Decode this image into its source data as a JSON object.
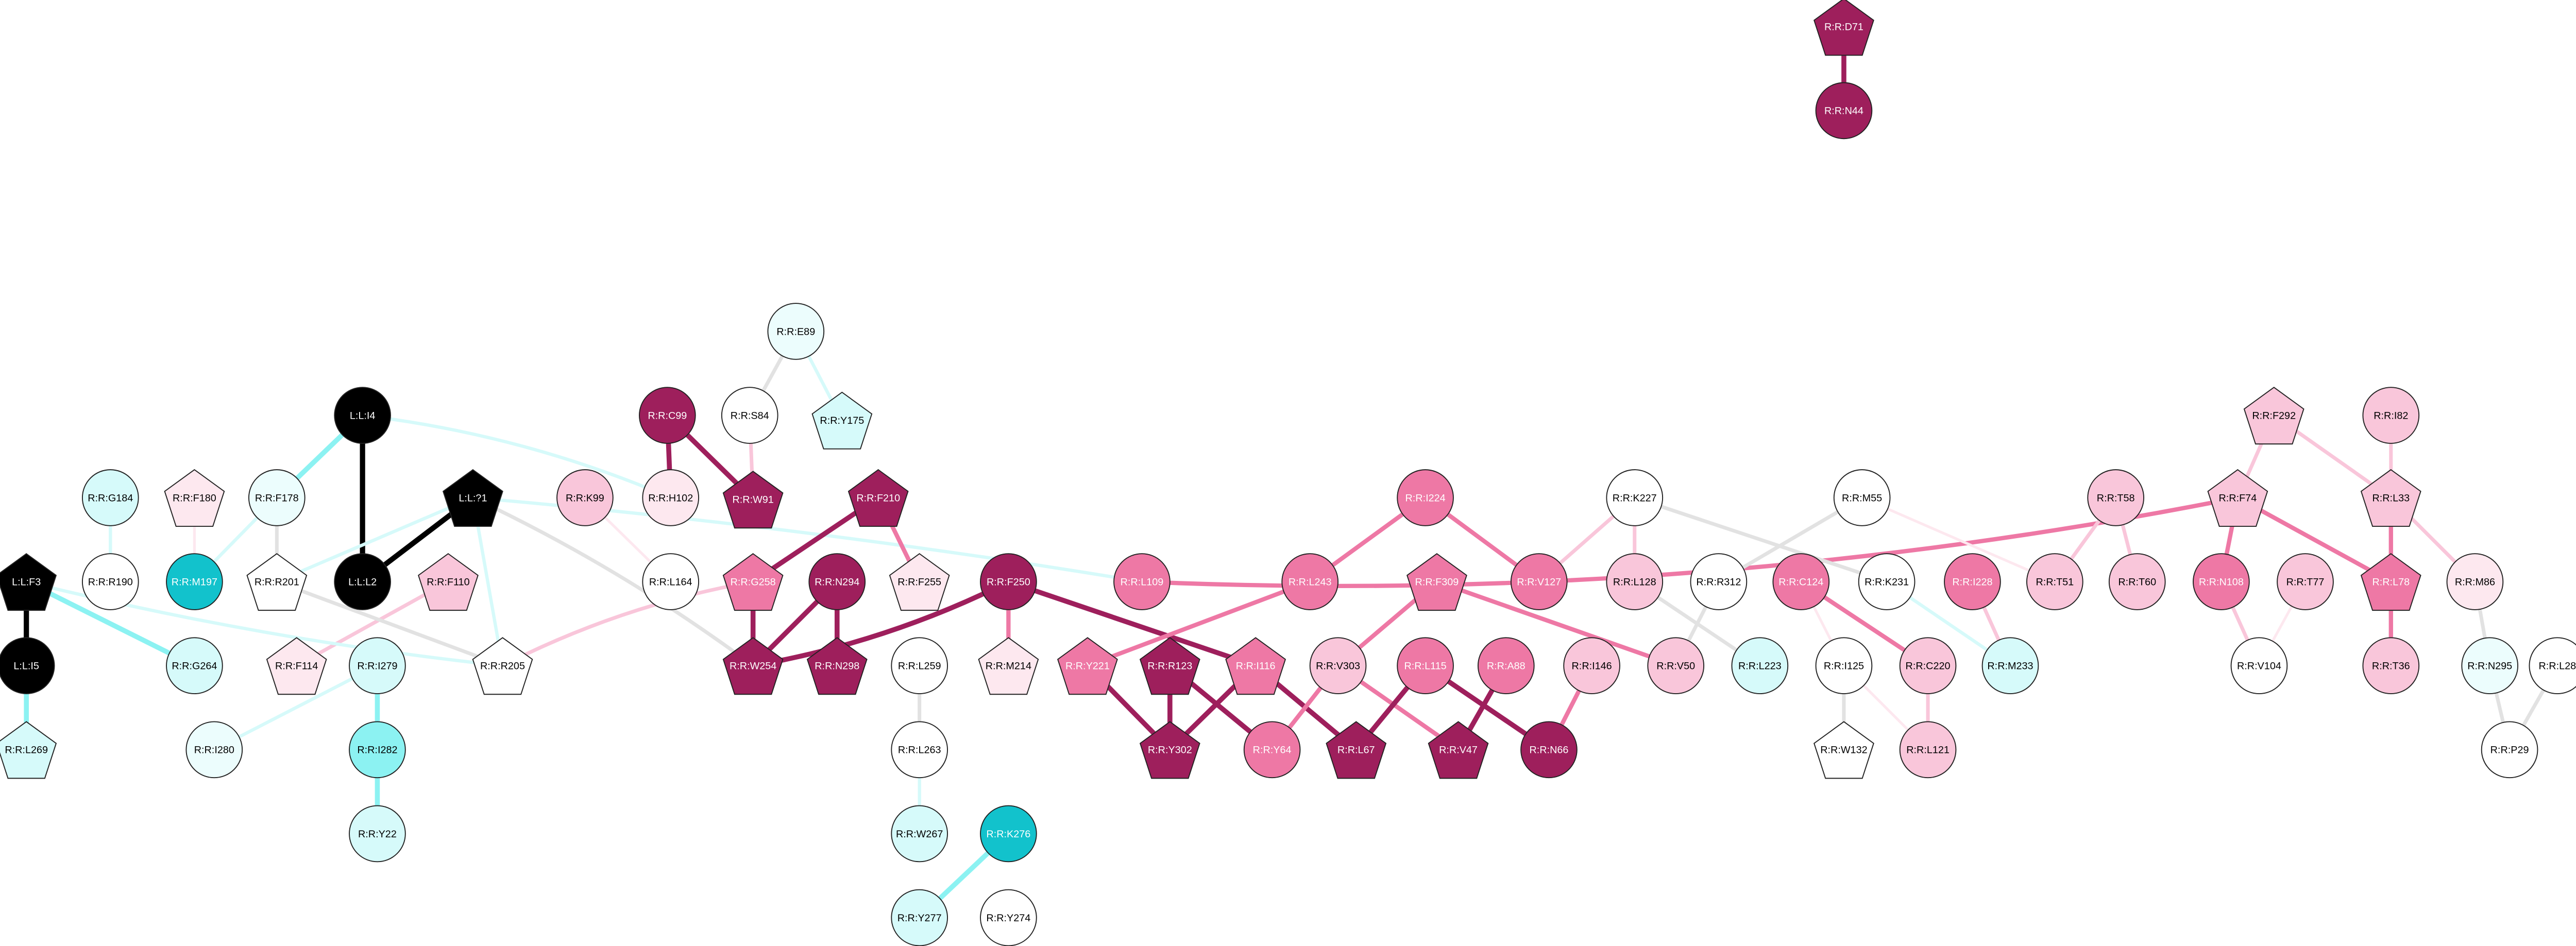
{
  "nodes": [
    {
      "label": "R:R:D71"
    },
    {
      "label": "R:R:N44"
    },
    {
      "label": "R:R:E89"
    },
    {
      "label": "R:R:S84"
    },
    {
      "label": "R:R:Y175"
    },
    {
      "label": "L:L:I4"
    },
    {
      "label": "R:R:C99"
    },
    {
      "label": "R:R:H102"
    },
    {
      "label": "R:R:W91"
    },
    {
      "label": "R:R:K99"
    },
    {
      "label": "R:R:G184"
    },
    {
      "label": "R:R:F180"
    },
    {
      "label": "R:R:F178"
    },
    {
      "label": "L:L:?1"
    },
    {
      "label": "R:R:F210"
    },
    {
      "label": "R:R:I224"
    },
    {
      "label": "R:R:K227"
    },
    {
      "label": "R:R:M55"
    },
    {
      "label": "R:R:T58"
    },
    {
      "label": "R:R:F292"
    },
    {
      "label": "R:R:I82"
    },
    {
      "label": "R:R:F74"
    },
    {
      "label": "R:R:L33"
    },
    {
      "label": "R:R:R190"
    },
    {
      "label": "R:R:M197"
    },
    {
      "label": "R:R:R201"
    },
    {
      "label": "L:L:L2"
    },
    {
      "label": "R:R:F110"
    },
    {
      "label": "R:R:L164"
    },
    {
      "label": "R:R:G258"
    },
    {
      "label": "R:R:N294"
    },
    {
      "label": "R:R:F255"
    },
    {
      "label": "R:R:F250"
    },
    {
      "label": "R:R:L109"
    },
    {
      "label": "R:R:L243"
    },
    {
      "label": "R:R:F309"
    },
    {
      "label": "R:R:V127"
    },
    {
      "label": "R:R:L128"
    },
    {
      "label": "R:R:R312"
    },
    {
      "label": "R:R:C124"
    },
    {
      "label": "R:R:K231"
    },
    {
      "label": "R:R:I228"
    },
    {
      "label": "R:R:T51"
    },
    {
      "label": "R:R:T60"
    },
    {
      "label": "R:R:N108"
    },
    {
      "label": "R:R:T77"
    },
    {
      "label": "R:R:L78"
    },
    {
      "label": "R:R:M86"
    },
    {
      "label": "L:L:F3"
    },
    {
      "label": "L:L:I5"
    },
    {
      "label": "R:R:G264"
    },
    {
      "label": "R:R:F114"
    },
    {
      "label": "R:R:I279"
    },
    {
      "label": "R:R:R205"
    },
    {
      "label": "R:R:W254"
    },
    {
      "label": "R:R:N298"
    },
    {
      "label": "R:R:L259"
    },
    {
      "label": "R:R:M214"
    },
    {
      "label": "R:R:Y221"
    },
    {
      "label": "R:R:R123"
    },
    {
      "label": "R:R:I116"
    },
    {
      "label": "R:R:V303"
    },
    {
      "label": "R:R:L115"
    },
    {
      "label": "R:R:A88"
    },
    {
      "label": "R:R:I146"
    },
    {
      "label": "R:R:V50"
    },
    {
      "label": "R:R:L223"
    },
    {
      "label": "R:R:I125"
    },
    {
      "label": "R:R:C220"
    },
    {
      "label": "R:R:M233"
    },
    {
      "label": "R:R:V104"
    },
    {
      "label": "R:R:T36"
    },
    {
      "label": "R:R:N295"
    },
    {
      "label": "R:R:L28"
    },
    {
      "label": "R:R:L269"
    },
    {
      "label": "R:R:I280"
    },
    {
      "label": "R:R:I282"
    },
    {
      "label": "R:R:L263"
    },
    {
      "label": "R:R:Y302"
    },
    {
      "label": "R:R:Y64"
    },
    {
      "label": "R:R:L67"
    },
    {
      "label": "R:R:V47"
    },
    {
      "label": "R:R:N66"
    },
    {
      "label": "R:R:W132"
    },
    {
      "label": "R:R:L121"
    },
    {
      "label": "R:R:P29"
    },
    {
      "label": "R:R:Y22"
    },
    {
      "label": "R:R:W267"
    },
    {
      "label": "R:R:K276"
    },
    {
      "label": "R:R:Y277"
    },
    {
      "label": "R:R:Y274"
    }
  ]
}
